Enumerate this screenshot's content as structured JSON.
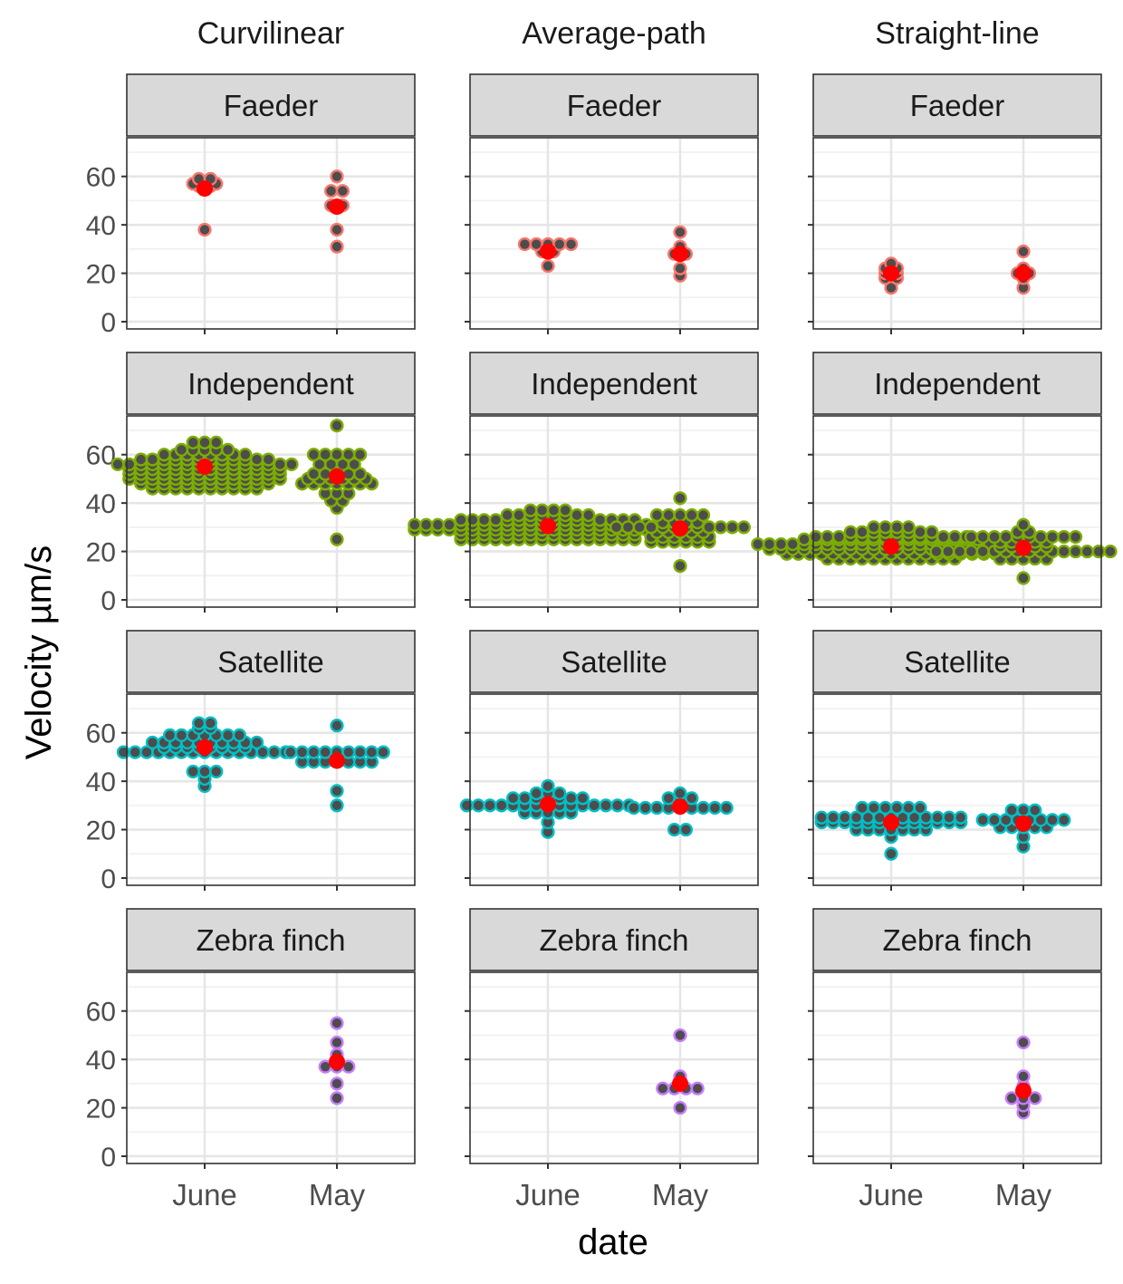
{
  "chart_data": {
    "type": "scatter",
    "subtype": "beeswarm facet grid",
    "xlabel": "date",
    "ylabel": "Velocity µm/s",
    "categories": [
      "June",
      "May"
    ],
    "ylim": [
      -3,
      76
    ],
    "y_ticks": [
      "0",
      "20",
      "40",
      "60"
    ],
    "y_tick_values": [
      0,
      20,
      40,
      60
    ],
    "grid": true,
    "columns": [
      "Curvilinear",
      "Average-path",
      "Straight-line"
    ],
    "rows": [
      "Faeder",
      "Independent",
      "Satellite",
      "Zebra finch"
    ],
    "mean_color": "#ff0000",
    "point_fill": "#4d4d4d",
    "row_colors": {
      "Faeder": "#f8766d",
      "Independent": "#7cae00",
      "Satellite": "#00bfc4",
      "Zebra finch": "#c77cff"
    },
    "panels": [
      {
        "row": "Faeder",
        "col": "Curvilinear",
        "June": [
          56,
          56,
          57,
          59,
          59,
          57,
          57,
          38
        ],
        "May": [
          60,
          54,
          54,
          38,
          31,
          48,
          48
        ],
        "means": {
          "June": 55,
          "May": 47.5
        }
      },
      {
        "row": "Faeder",
        "col": "Average-path",
        "June": [
          32,
          32,
          32,
          32,
          32,
          29,
          29,
          23
        ],
        "May": [
          37,
          31,
          29,
          28,
          28,
          22,
          19
        ],
        "means": {
          "June": 29,
          "May": 28
        }
      },
      {
        "row": "Faeder",
        "col": "Straight-line",
        "June": [
          24,
          22,
          22,
          20,
          20,
          18,
          18,
          14
        ],
        "May": [
          29,
          22,
          21,
          20,
          20,
          18,
          14
        ],
        "means": {
          "June": 20,
          "May": 20
        }
      },
      {
        "row": "Independent",
        "col": "Curvilinear",
        "June": [
          65,
          65,
          65,
          62,
          62,
          62,
          62,
          62,
          60,
          60,
          60,
          60,
          60,
          60,
          60,
          60,
          58,
          58,
          58,
          58,
          58,
          58,
          58,
          58,
          58,
          58,
          58,
          58,
          56,
          56,
          56,
          56,
          56,
          56,
          56,
          56,
          56,
          56,
          56,
          56,
          56,
          56,
          56,
          56,
          54,
          54,
          54,
          54,
          54,
          54,
          54,
          54,
          54,
          54,
          54,
          54,
          54,
          54,
          52,
          52,
          52,
          52,
          52,
          52,
          52,
          52,
          52,
          52,
          52,
          52,
          52,
          52,
          50,
          50,
          50,
          50,
          50,
          50,
          50,
          50,
          50,
          50,
          50,
          50,
          50,
          50,
          48,
          48,
          48,
          48,
          48,
          48,
          48,
          48,
          48,
          48,
          48,
          48,
          46,
          46,
          46,
          46,
          46,
          46,
          46,
          46,
          46,
          46
        ],
        "May": [
          72,
          60,
          60,
          60,
          60,
          60,
          56,
          56,
          56,
          56,
          52,
          52,
          52,
          52,
          52,
          50,
          50,
          50,
          50,
          50,
          50,
          48,
          48,
          48,
          48,
          48,
          48,
          48,
          44,
          44,
          44,
          41,
          41,
          38,
          25
        ],
        "means": {
          "June": 55,
          "May": 51
        }
      },
      {
        "row": "Independent",
        "col": "Average-path",
        "June": [
          37,
          37,
          37,
          37,
          35,
          35,
          35,
          35,
          35,
          35,
          35,
          35,
          33,
          33,
          33,
          33,
          33,
          33,
          33,
          33,
          33,
          33,
          33,
          33,
          33,
          33,
          33,
          33,
          31,
          31,
          31,
          31,
          31,
          31,
          31,
          31,
          31,
          31,
          31,
          31,
          31,
          31,
          31,
          31,
          31,
          31,
          31,
          31,
          31,
          31,
          31,
          31,
          29,
          29,
          29,
          29,
          29,
          29,
          29,
          29,
          29,
          29,
          29,
          29,
          29,
          29,
          29,
          29,
          29,
          29,
          29,
          29,
          29,
          29,
          29,
          29,
          27,
          27,
          27,
          27,
          27,
          27,
          27,
          27,
          27,
          27,
          27,
          27,
          27,
          27,
          27,
          27,
          25,
          25,
          25,
          25,
          25,
          25,
          25,
          25,
          25,
          25,
          25,
          25,
          25,
          25,
          25,
          25
        ],
        "May": [
          42,
          35,
          35,
          35,
          35,
          35,
          32,
          32,
          32,
          32,
          30,
          30,
          30,
          30,
          30,
          30,
          30,
          30,
          30,
          30,
          30,
          30,
          28,
          28,
          28,
          28,
          28,
          26,
          26,
          26,
          26,
          26,
          26,
          24,
          24,
          24,
          24,
          24,
          24,
          14
        ],
        "means": {
          "June": 30.5,
          "May": 29.5
        }
      },
      {
        "row": "Independent",
        "col": "Straight-line",
        "June": [
          30,
          30,
          30,
          30,
          28,
          28,
          28,
          28,
          28,
          28,
          28,
          28,
          26,
          26,
          26,
          26,
          26,
          26,
          26,
          26,
          26,
          26,
          26,
          26,
          26,
          26,
          25,
          25,
          25,
          25,
          25,
          25,
          25,
          25,
          25,
          25,
          25,
          25,
          25,
          25,
          25,
          25,
          23,
          23,
          23,
          23,
          23,
          23,
          23,
          23,
          23,
          23,
          23,
          23,
          23,
          23,
          23,
          23,
          23,
          23,
          23,
          23,
          23,
          23,
          23,
          23,
          21,
          21,
          21,
          21,
          21,
          21,
          21,
          21,
          21,
          21,
          21,
          21,
          21,
          21,
          21,
          21,
          21,
          21,
          21,
          21,
          21,
          21,
          19,
          19,
          19,
          19,
          19,
          19,
          19,
          19,
          19,
          19,
          19,
          19,
          19,
          19,
          19,
          19,
          19,
          19,
          19,
          17,
          17,
          17,
          17,
          17,
          17,
          17,
          17,
          17,
          17,
          17,
          17
        ],
        "May": [
          31,
          28,
          28,
          26,
          26,
          26,
          26,
          26,
          26,
          26,
          26,
          26,
          26,
          24,
          24,
          24,
          24,
          24,
          22,
          22,
          22,
          22,
          22,
          20,
          20,
          20,
          20,
          20,
          20,
          20,
          20,
          20,
          20,
          20,
          20,
          20,
          20,
          20,
          20,
          17,
          17,
          17,
          17,
          17,
          9
        ],
        "means": {
          "June": 22,
          "May": 21.5
        }
      },
      {
        "row": "Satellite",
        "col": "Curvilinear",
        "June": [
          64,
          64,
          62,
          62,
          59,
          59,
          59,
          59,
          59,
          59,
          59,
          56,
          56,
          56,
          56,
          56,
          56,
          56,
          56,
          56,
          56,
          54,
          54,
          54,
          54,
          54,
          54,
          54,
          54,
          52,
          52,
          52,
          52,
          52,
          52,
          52,
          52,
          52,
          52,
          52,
          52,
          52,
          52,
          52,
          44,
          44,
          44,
          41,
          38
        ],
        "May": [
          63,
          52,
          52,
          52,
          52,
          52,
          52,
          52,
          52,
          52,
          48,
          48,
          48,
          48,
          48,
          48,
          48,
          36,
          30
        ],
        "means": {
          "June": 54,
          "May": 48.5
        }
      },
      {
        "row": "Satellite",
        "col": "Average-path",
        "June": [
          38,
          35,
          35,
          35,
          33,
          33,
          33,
          33,
          33,
          33,
          33,
          30,
          30,
          30,
          30,
          30,
          30,
          30,
          30,
          30,
          30,
          30,
          30,
          30,
          30,
          30,
          27,
          27,
          27,
          27,
          27,
          23,
          19
        ],
        "May": [
          35,
          33,
          33,
          33,
          29,
          29,
          29,
          29,
          29,
          29,
          29,
          29,
          29,
          20,
          20
        ],
        "means": {
          "June": 30.5,
          "May": 29.5
        }
      },
      {
        "row": "Satellite",
        "col": "Straight-line",
        "June": [
          29,
          29,
          29,
          29,
          29,
          29,
          25,
          25,
          25,
          25,
          25,
          25,
          25,
          25,
          25,
          25,
          25,
          25,
          25,
          23,
          23,
          23,
          23,
          23,
          23,
          23,
          23,
          23,
          23,
          23,
          23,
          23,
          20,
          20,
          20,
          20,
          20,
          20,
          20,
          17,
          10
        ],
        "May": [
          28,
          28,
          28,
          24,
          24,
          24,
          24,
          24,
          24,
          24,
          24,
          21,
          21,
          21,
          21,
          21,
          17,
          13
        ],
        "means": {
          "June": 23,
          "May": 22.5
        }
      },
      {
        "row": "Zebra finch",
        "col": "Curvilinear",
        "June": [],
        "May": [
          55,
          47,
          42,
          37,
          37,
          37,
          30,
          24
        ],
        "means": {
          "May": 39
        }
      },
      {
        "row": "Zebra finch",
        "col": "Average-path",
        "June": [],
        "May": [
          50,
          33,
          31,
          28,
          28,
          28,
          28,
          20
        ],
        "means": {
          "May": 30
        }
      },
      {
        "row": "Zebra finch",
        "col": "Straight-line",
        "June": [],
        "May": [
          47,
          33,
          29,
          24,
          24,
          24,
          21,
          18
        ],
        "means": {
          "May": 27
        }
      }
    ]
  }
}
